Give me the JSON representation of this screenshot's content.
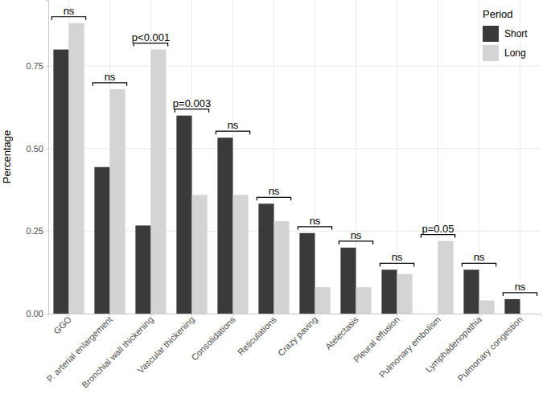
{
  "chart_data": {
    "type": "bar",
    "y_label": "Percentage",
    "legend_title": "Period",
    "legend": "top-right",
    "grid": true,
    "categories": [
      "GGO",
      "P. arterial enlargement",
      "Bronchial wall thickening",
      "Vascular thickening",
      "Consolidations",
      "Reticulations",
      "Crazy paving",
      "Atelectasis",
      "Pleural effusion",
      "Pulmonary embolism",
      "Lymphadenopathia",
      "Pulmonary congestion"
    ],
    "series": [
      {
        "name": "Short",
        "color": "#3a3a3a",
        "values": [
          0.8,
          0.444,
          0.267,
          0.6,
          0.533,
          0.333,
          0.244,
          0.2,
          0.133,
          0.0,
          0.133,
          0.044
        ]
      },
      {
        "name": "Long",
        "color": "#d4d4d4",
        "values": [
          0.88,
          0.68,
          0.8,
          0.36,
          0.36,
          0.28,
          0.08,
          0.08,
          0.12,
          0.22,
          0.04,
          0.0
        ]
      }
    ],
    "annotations": [
      "ns",
      "ns",
      "p<0.001",
      "p=0.003",
      "ns",
      "ns",
      "ns",
      "ns",
      "ns",
      "p=0.05",
      "ns",
      "ns"
    ],
    "ylim": [
      0,
      0.95
    ],
    "yticks": [
      {
        "value": 0,
        "label": "0.00"
      },
      {
        "value": 0.25,
        "label": "0.25"
      },
      {
        "value": 0.5,
        "label": "0.50"
      },
      {
        "value": 0.75,
        "label": "0.75"
      }
    ]
  }
}
